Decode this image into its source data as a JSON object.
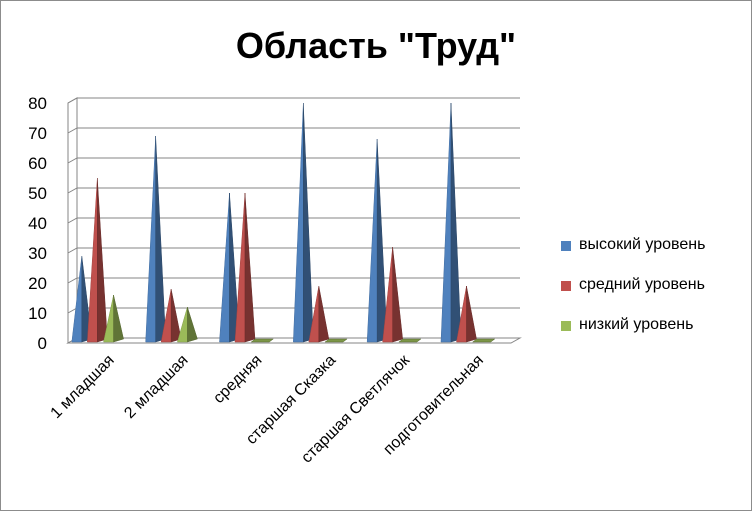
{
  "chart_data": {
    "type": "bar",
    "title": "Область \"Труд\"",
    "categories": [
      "1 младшая",
      "2 младшая",
      "средняя",
      "старшая Сказка",
      "старшая Светлячок",
      "подготовительная"
    ],
    "ylim": [
      0,
      80
    ],
    "yticks": [
      0,
      10,
      20,
      30,
      40,
      50,
      60,
      70,
      80
    ],
    "grid": true,
    "legend_position": "right",
    "series": [
      {
        "name": "высокий уровень",
        "color": "#4F81BD",
        "values": [
          29,
          69,
          50,
          80,
          68,
          80
        ]
      },
      {
        "name": "средний уровень",
        "color": "#C0504D",
        "values": [
          55,
          18,
          50,
          19,
          32,
          19
        ]
      },
      {
        "name": "низкий уровень",
        "color": "#9BBB59",
        "values": [
          16,
          12,
          0,
          0,
          0,
          0
        ]
      }
    ]
  }
}
